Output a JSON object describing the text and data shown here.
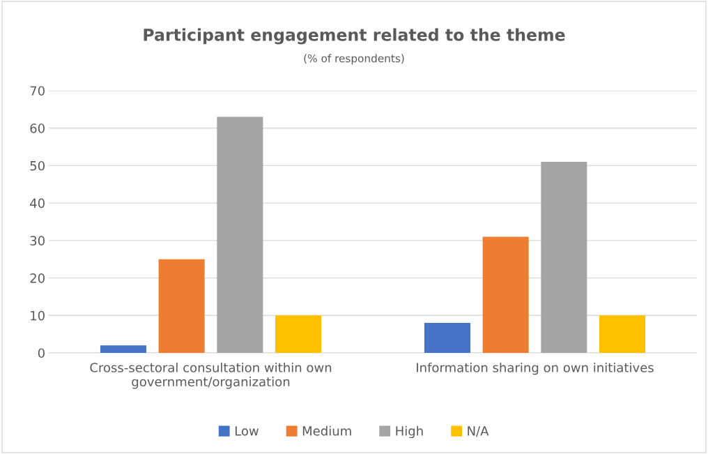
{
  "chart_data": {
    "type": "bar",
    "title": "Participant engagement related to the theme",
    "subtitle": "(% of respondents)",
    "categories": [
      "Cross-sectoral consultation within own\ngovernment/organization",
      "Information sharing on own initiatives"
    ],
    "series": [
      {
        "name": "Low",
        "color": "#4472c4",
        "values": [
          2,
          8
        ]
      },
      {
        "name": "Medium",
        "color": "#ed7d31",
        "values": [
          25,
          31
        ]
      },
      {
        "name": "High",
        "color": "#a5a5a5",
        "values": [
          63,
          51
        ]
      },
      {
        "name": "N/A",
        "color": "#ffc000",
        "values": [
          10,
          10
        ]
      }
    ],
    "ylim": [
      0,
      70
    ],
    "yticks": [
      0,
      10,
      20,
      30,
      40,
      50,
      60,
      70
    ],
    "grid": "y",
    "legend": "bottom"
  }
}
